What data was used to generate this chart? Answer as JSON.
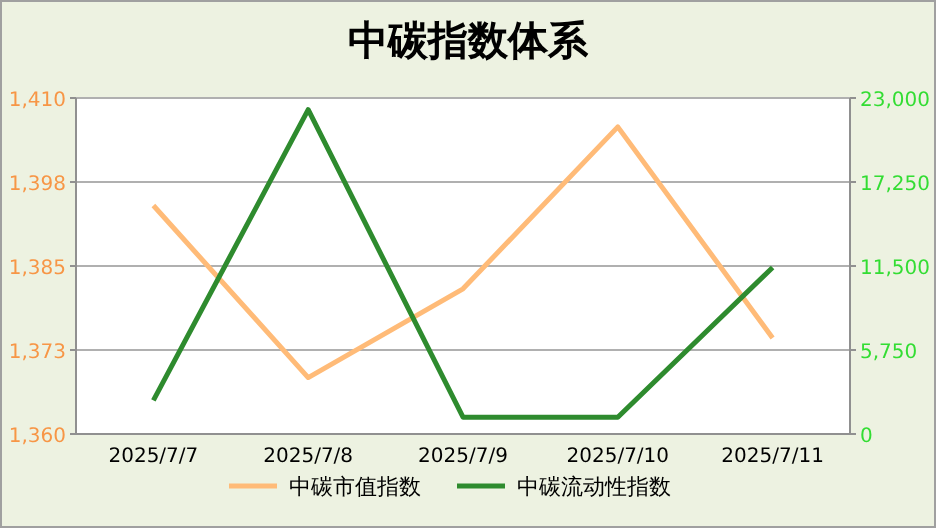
{
  "chart_data": {
    "type": "line",
    "title": "中碳指数体系",
    "categories": [
      "2025/7/7",
      "2025/7/8",
      "2025/7/9",
      "2025/7/10",
      "2025/7/11"
    ],
    "series": [
      {
        "name": "中碳市值指数",
        "color": "#ffbb78",
        "values": [
          1394.0,
          1368.4,
          1381.6,
          1405.7,
          1374.3
        ]
      },
      {
        "name": "中碳流动性指数",
        "color": "#2e8b2e",
        "axis": "y2",
        "values": [
          2300,
          22200,
          1150,
          1150,
          11400
        ]
      }
    ],
    "ylim": [
      1360,
      1410
    ],
    "yticks": [
      {
        "value": 1360,
        "label": "1,360"
      },
      {
        "value": 1372.5,
        "label": "1,373"
      },
      {
        "value": 1385,
        "label": "1,385"
      },
      {
        "value": 1397.5,
        "label": "1,398"
      },
      {
        "value": 1410,
        "label": "1,410"
      }
    ],
    "y2lim": [
      0,
      23000
    ],
    "y2ticks": [
      {
        "value": 0,
        "label": "0"
      },
      {
        "value": 5750,
        "label": "5,750"
      },
      {
        "value": 11500,
        "label": "11,500"
      },
      {
        "value": 17250,
        "label": "17,250"
      },
      {
        "value": 23000,
        "label": "23,000"
      }
    ],
    "grid": "y",
    "legend": "bottom",
    "marker": "none",
    "line_style": "solid"
  }
}
